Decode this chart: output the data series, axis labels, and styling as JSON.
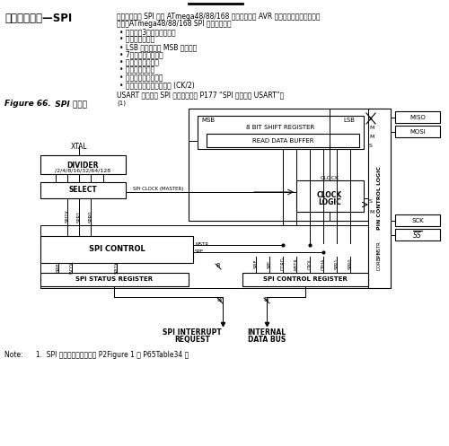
{
  "bg_color": "#ffffff",
  "text_color": "#000000",
  "title": "串行外设接口—SPI",
  "intro1": "串行外设接口 SPI 允许 ATmega48/88/168 和外设或其他 AVR 器件进行高速的同步数据",
  "intro2": "传输。ATmega48/88/168 SPI 的特点如下：",
  "bullets": [
    "• 全双工，3线同步数据传输",
    "• 主机或从机操作",
    "• LSB 首先发送或 MSB 首先发送",
    "• 7种可编程的比特率",
    "• 传输结束中断标志",
    "• 写碰撞标志检测",
    "• 可以从闲置模式唤醒",
    "• 作为主机时具有倍速模式 (CK/2)"
  ],
  "usart": "USART 也可用于 SPI 主机模式，见 P177 “SPI 模式下的 USART”。",
  "fig_label": "Figure 66.",
  "fig_title": "  SPI 方框图",
  "fig_super": "(1)",
  "note": "Note:      1.  SPI 的引脚描述列请参见 P2Figure 1 与 P65Table34 。",
  "dpi": 100,
  "figw": 5.0,
  "figh": 4.97
}
